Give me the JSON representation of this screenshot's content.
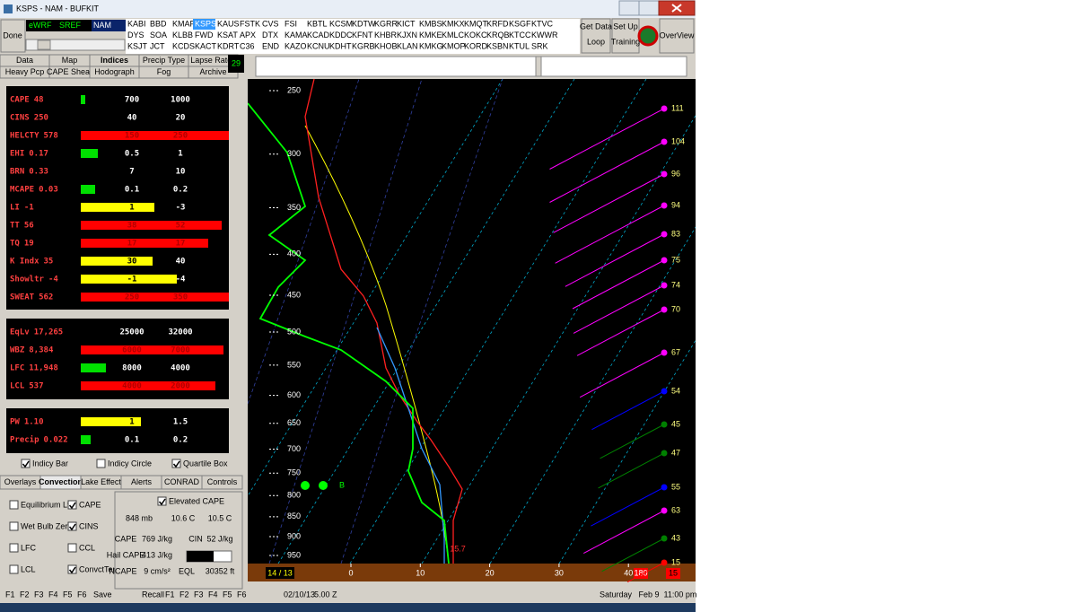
{
  "window": {
    "title": "KSPS - NAM - BUFKIT"
  },
  "toolbar": {
    "done": "Done",
    "models": [
      "eWRF",
      "SREF",
      "NAM"
    ],
    "selected_model": 2,
    "stations": [
      [
        "KABI",
        "BBD",
        "KMAF",
        "KSPS",
        "KAUS",
        "FSTK",
        "CVS",
        "FSI",
        "KBTL",
        "KCSM",
        "KDTW",
        "KGRR",
        "KICT",
        "KMBS",
        "KMKX",
        "KMQT",
        "KRFD",
        "KSGF",
        "KTVC"
      ],
      [
        "DYS",
        "SOA",
        "KLBB",
        "FWD",
        "KSAT",
        "APX",
        "DTX",
        "KAMA",
        "KCAD",
        "KDDC",
        "KFNT",
        "KHBR",
        "KJXN",
        "KMKE",
        "KMLC",
        "KOKC",
        "KRQB",
        "KTCC",
        "KWWR"
      ],
      [
        "KSJT",
        "JCT",
        "KCDS",
        "KACT",
        "KDRT",
        "C36",
        "END",
        "KAZO",
        "KCNU",
        "KDHT",
        "KGRB",
        "KHOB",
        "KLAN",
        "KMKG",
        "KMOP",
        "KORD",
        "KSBN",
        "KTUL",
        "SRK"
      ]
    ],
    "selected_station": {
      "row": 0,
      "col": 3
    },
    "buttons": [
      [
        "Get Data",
        "Loop"
      ],
      [
        "Set Up",
        "Training"
      ],
      [
        "OverView"
      ]
    ]
  },
  "tabs_top": [
    [
      "Data",
      "Map",
      "Indices",
      "Precip Type",
      "Lapse Rates"
    ],
    [
      "Heavy Pcp",
      "CAPE Shear",
      "Hodograph",
      "Fog",
      "Archive"
    ]
  ],
  "frame_number": "29",
  "indices": [
    [
      {
        "label": "CAPE",
        "value": "48",
        "bar_color": "#00e000",
        "thresholds": [
          700,
          1000
        ]
      },
      {
        "label": "CINS",
        "value": "250",
        "bar_color": null,
        "thresholds": [
          40,
          20
        ]
      },
      {
        "label": "HELCTY",
        "value": "578",
        "bar_color": "#ff0000",
        "thresholds": [
          150,
          250
        ]
      },
      {
        "label": "EHI",
        "value": "0.17",
        "bar_color": "#00e000",
        "thresholds": [
          0.5,
          1
        ]
      },
      {
        "label": "BRN",
        "value": "0.33",
        "bar_color": null,
        "thresholds": [
          7,
          10
        ]
      },
      {
        "label": "MCAPE",
        "value": "0.03",
        "bar_color": "#00e000",
        "thresholds": [
          0.1,
          0.2
        ]
      },
      {
        "label": "LI",
        "value": "-1",
        "bar_color": "#ffff00",
        "thresholds": [
          1,
          -3
        ]
      },
      {
        "label": "TT",
        "value": "56",
        "bar_color": "#ff0000",
        "thresholds": [
          38,
          52
        ]
      },
      {
        "label": "TQ",
        "value": "19",
        "bar_color": "#ff0000",
        "thresholds": [
          17,
          17
        ]
      },
      {
        "label": "K Indx",
        "value": "35",
        "bar_color": "#ffff00",
        "thresholds": [
          30,
          40
        ]
      },
      {
        "label": "Showltr",
        "value": "-4",
        "bar_color": "#ffff00",
        "thresholds": [
          -1,
          -4
        ]
      },
      {
        "label": "SWEAT",
        "value": "562",
        "bar_color": "#ff0000",
        "thresholds": [
          250,
          350
        ]
      }
    ],
    [
      {
        "label": "EqLv",
        "value": "17,265",
        "bar_color": null,
        "thresholds": [
          25000,
          32000
        ]
      },
      {
        "label": "WBZ",
        "value": "8,384",
        "bar_color": "#ff0000",
        "thresholds": [
          6000,
          7000
        ]
      },
      {
        "label": "LFC",
        "value": "11,948",
        "bar_color": "#00e000",
        "thresholds": [
          8000,
          4000
        ]
      },
      {
        "label": "LCL",
        "value": "537",
        "bar_color": "#ff0000",
        "thresholds": [
          4000,
          2000
        ]
      }
    ],
    [
      {
        "label": "PW",
        "value": "1.10",
        "bar_color": "#ffff00",
        "thresholds": [
          1,
          1.5
        ]
      },
      {
        "label": "Precip",
        "value": "0.022",
        "bar_color": "#00e000",
        "thresholds": [
          0.1,
          0.2
        ]
      }
    ]
  ],
  "index_options": [
    {
      "label": "Indicy Bar",
      "checked": true
    },
    {
      "label": "Indicy Circle",
      "checked": false
    },
    {
      "label": "Quartile Box",
      "checked": true
    }
  ],
  "tabs_bottom": [
    "Overlays",
    "Convection",
    "Lake Effect",
    "Alerts",
    "CONRAD",
    "Controls"
  ],
  "selected_bottom_tab": 1,
  "convection_options": [
    {
      "label": "Equilibrium Lvl",
      "checked": false
    },
    {
      "label": "CAPE",
      "checked": true
    },
    {
      "label": "Wet Bulb Zero",
      "checked": false
    },
    {
      "label": "CINS",
      "checked": true
    },
    {
      "label": "LFC",
      "checked": false
    },
    {
      "label": "CCL",
      "checked": false
    },
    {
      "label": "LCL",
      "checked": false
    },
    {
      "label": "ConvctTemp",
      "checked": true
    }
  ],
  "elevated": {
    "option": {
      "label": "Elevated CAPE",
      "checked": true
    },
    "parcel": [
      "848 mb",
      "10.6 C",
      "10.5 C"
    ],
    "rows": [
      [
        "CAPE",
        "769 J/kg",
        "CIN",
        "52 J/kg"
      ],
      [
        "Hail CAPE",
        "413 J/kg"
      ],
      [
        "NCAPE",
        "9 cm/s²",
        "EQL",
        "30352 ft"
      ]
    ]
  },
  "function_keys": {
    "left": [
      "F1",
      "F2",
      "F3",
      "F4",
      "F5",
      "F6",
      "Save"
    ],
    "right": [
      "Recall",
      "F1",
      "F2",
      "F3",
      "F4",
      "F5",
      "F6"
    ]
  },
  "sounding": {
    "pressure_ticks": [
      250,
      300,
      350,
      400,
      450,
      500,
      550,
      600,
      650,
      700,
      750,
      800,
      850,
      900,
      950
    ],
    "temp_ticks": [
      0,
      10,
      20,
      30,
      40
    ],
    "surface_label": "14 / 13",
    "surface_wind": [
      "180",
      "15"
    ],
    "convective_temp": "15.7",
    "marker": "B",
    "winds": [
      {
        "speed": 111,
        "color": "#ff00ff"
      },
      {
        "speed": 104,
        "color": "#ff00ff"
      },
      {
        "speed": 96,
        "color": "#ff00ff"
      },
      {
        "speed": 94,
        "color": "#ff00ff"
      },
      {
        "speed": 83,
        "color": "#ff00ff"
      },
      {
        "speed": 75,
        "color": "#ff00ff"
      },
      {
        "speed": 74,
        "color": "#ff00ff"
      },
      {
        "speed": 70,
        "color": "#ff00ff"
      },
      {
        "speed": 67,
        "color": "#ff00ff"
      },
      {
        "speed": 54,
        "color": "#0000ff"
      },
      {
        "speed": 45,
        "color": "#008000"
      },
      {
        "speed": 47,
        "color": "#008000"
      },
      {
        "speed": 55,
        "color": "#0000ff"
      },
      {
        "speed": 63,
        "color": "#ff00ff"
      },
      {
        "speed": 43,
        "color": "#008000"
      },
      {
        "speed": 15,
        "color": "#ff0000"
      }
    ]
  },
  "status": {
    "date": "02/10/13",
    "hour": "5.00 Z",
    "local": "Saturday   Feb 9  11:00 pm"
  }
}
